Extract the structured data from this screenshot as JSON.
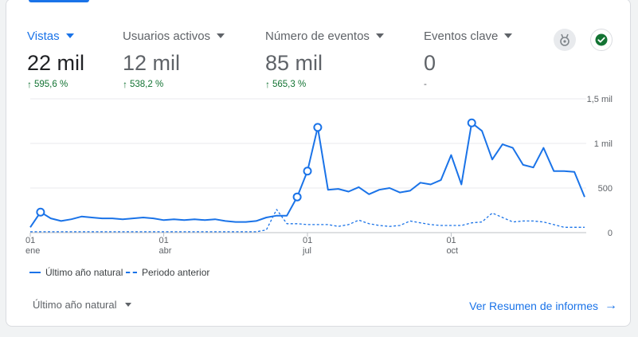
{
  "metrics": [
    {
      "label": "Vistas",
      "value": "22 mil",
      "change": "595,6 %"
    },
    {
      "label": "Usuarios activos",
      "value": "12 mil",
      "change": "538,2 %"
    },
    {
      "label": "Número de eventos",
      "value": "85 mil",
      "change": "565,3 %"
    },
    {
      "label": "Eventos clave",
      "value": "0",
      "change": "-"
    }
  ],
  "legend": {
    "current": "Último año natural",
    "previous": "Periodo anterior"
  },
  "footer": {
    "range_label": "Último año natural",
    "link_label": "Ver Resumen de informes"
  },
  "icons": {
    "insights": "insights-icon",
    "status": "check-circle-icon",
    "arrow": "arrow-right-icon"
  },
  "colors": {
    "accent": "#1a73e8",
    "positive": "#137333"
  },
  "chart_data": {
    "type": "line",
    "x_tick_labels": [
      {
        "day": "01",
        "month": "ene"
      },
      {
        "day": "01",
        "month": "abr"
      },
      {
        "day": "01",
        "month": "jul"
      },
      {
        "day": "01",
        "month": "oct"
      }
    ],
    "y_tick_labels": [
      "0",
      "500",
      "1 mil",
      "1,5 mil"
    ],
    "ylim": [
      0,
      1500
    ],
    "grid": true,
    "legend_position": "bottom-left",
    "series": [
      {
        "name": "Último año natural",
        "style": "solid",
        "values": [
          60,
          230,
          160,
          130,
          150,
          180,
          170,
          160,
          160,
          150,
          160,
          170,
          160,
          140,
          150,
          140,
          150,
          140,
          150,
          130,
          120,
          120,
          130,
          170,
          190,
          190,
          400,
          690,
          1180,
          480,
          490,
          460,
          510,
          430,
          480,
          500,
          450,
          470,
          560,
          540,
          590,
          870,
          540,
          1230,
          1140,
          820,
          990,
          950,
          760,
          730,
          950,
          690,
          690,
          680,
          400
        ],
        "markers": [
          1,
          26,
          27,
          28,
          43
        ]
      },
      {
        "name": "Periodo anterior",
        "style": "dashed",
        "values": [
          10,
          10,
          10,
          10,
          10,
          10,
          10,
          10,
          10,
          10,
          10,
          10,
          10,
          10,
          10,
          10,
          10,
          10,
          10,
          10,
          10,
          10,
          10,
          30,
          260,
          100,
          100,
          90,
          90,
          90,
          70,
          90,
          140,
          100,
          80,
          70,
          80,
          130,
          110,
          90,
          80,
          80,
          80,
          110,
          120,
          220,
          170,
          120,
          130,
          130,
          120,
          90,
          60,
          60,
          60
        ]
      }
    ]
  }
}
